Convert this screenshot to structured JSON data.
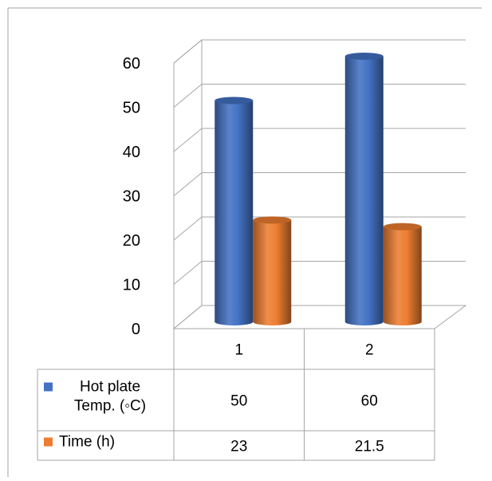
{
  "chart_data": {
    "type": "bar",
    "style": "3d-cylinder-with-data-table",
    "categories": [
      "1",
      "2"
    ],
    "series": [
      {
        "name": "Hot plate Temp. (◦C)",
        "name_lines": [
          "Hot plate",
          "Temp. (◦C)"
        ],
        "values": [
          50,
          60
        ],
        "value_labels": [
          "50",
          "60"
        ],
        "color": "#4472C4"
      },
      {
        "name": "Time (h)",
        "name_lines": [
          "Time (h)"
        ],
        "values": [
          23,
          21.5
        ],
        "value_labels": [
          "23",
          "21.5"
        ],
        "color": "#ED7D31"
      }
    ],
    "y_ticks": [
      "0",
      "10",
      "20",
      "30",
      "40",
      "50",
      "60"
    ],
    "ylim": [
      0,
      60
    ],
    "grid": true,
    "legend": "data-table",
    "title": "",
    "xlabel": "",
    "ylabel": ""
  }
}
